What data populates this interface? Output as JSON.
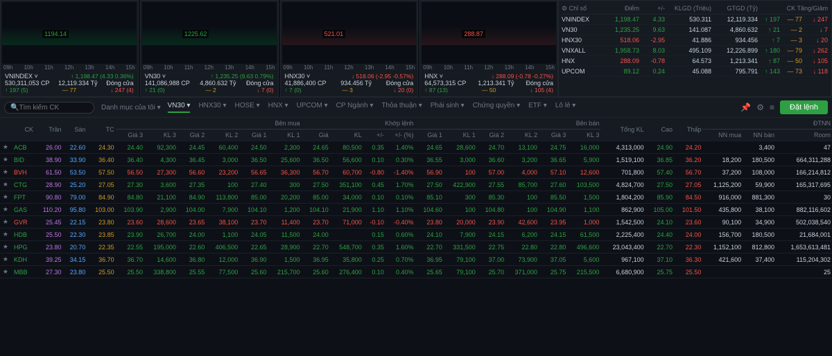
{
  "colors": {
    "up": "#2ea043",
    "down": "#f85149",
    "ref": "#d29922",
    "ceil": "#c074e8",
    "floor": "#58a6ff",
    "neutral": "#c9d1d9",
    "bg": "#0d1117",
    "panel": "#161b22",
    "border": "#21262d"
  },
  "charts": [
    {
      "symbol": "VNINDEX",
      "value": "1194.14",
      "price": "1,198.47",
      "chg": "(4.33 0.36%)",
      "vol": "530,311,053 CP",
      "val": "12,119.334 Tỷ",
      "status": "Đóng cửa",
      "up": "197 (5)",
      "flat": "77",
      "down": "247 (4)",
      "dir": "up",
      "style": "green"
    },
    {
      "symbol": "VN30",
      "value": "1225.62",
      "price": "1,235.25",
      "chg": "(9.63 0.79%)",
      "vol": "141,086,988 CP",
      "val": "4,860.632 Tỷ",
      "status": "Đóng cửa",
      "up": "21 (0)",
      "flat": "2",
      "down": "7 (0)",
      "dir": "up",
      "style": "green"
    },
    {
      "symbol": "HNX30",
      "value": "521.01",
      "price": "518.06",
      "chg": "(-2.95 -0.57%)",
      "vol": "41,886,400 CP",
      "val": "934.456 Tỷ",
      "status": "Đóng cửa",
      "up": "7 (0)",
      "flat": "3",
      "down": "20 (0)",
      "dir": "down",
      "style": "red"
    },
    {
      "symbol": "HNX",
      "value": "288.87",
      "price": "288.09",
      "chg": "(-0.78 -0.27%)",
      "vol": "64,573,315 CP",
      "val": "1,213.341 Tỷ",
      "status": "Đóng cửa",
      "up": "87 (13)",
      "flat": "50",
      "down": "105 (4)",
      "dir": "down",
      "style": "red"
    }
  ],
  "chart_times": [
    "09h",
    "10h",
    "11h",
    "12h",
    "13h",
    "14h",
    "15h"
  ],
  "indices_header": {
    "c0": "Chỉ số",
    "c1": "Điểm",
    "c2": "+/-",
    "c3": "KLGD (Triệu)",
    "c4": "GTGD (Tỷ)",
    "c5": "CK Tăng/Giảm"
  },
  "indices": [
    {
      "name": "VNINDEX",
      "point": "1,198.47",
      "chg": "4.33",
      "vol": "530.311",
      "val": "12,119.334",
      "up": "197",
      "flat": "77",
      "down": "247",
      "dir": "up"
    },
    {
      "name": "VN30",
      "point": "1,235.25",
      "chg": "9.63",
      "vol": "141.087",
      "val": "4,860.632",
      "up": "21",
      "flat": "2",
      "down": "7",
      "dir": "up"
    },
    {
      "name": "HNX30",
      "point": "518.06",
      "chg": "-2.95",
      "vol": "41.886",
      "val": "934.456",
      "up": "7",
      "flat": "3",
      "down": "20",
      "dir": "down"
    },
    {
      "name": "VNXALL",
      "point": "1,958.73",
      "chg": "8.03",
      "vol": "495.109",
      "val": "12,226.899",
      "up": "180",
      "flat": "79",
      "down": "262",
      "dir": "up"
    },
    {
      "name": "HNX",
      "point": "288.09",
      "chg": "-0.78",
      "vol": "64.573",
      "val": "1,213.341",
      "up": "87",
      "flat": "50",
      "down": "105",
      "dir": "down"
    },
    {
      "name": "UPCOM",
      "point": "89.12",
      "chg": "0.24",
      "vol": "45.088",
      "val": "795.791",
      "up": "143",
      "flat": "73",
      "down": "118",
      "dir": "up"
    }
  ],
  "search_placeholder": "Tìm kiếm CK",
  "nav": {
    "watchlist": "Danh mục của tôi",
    "items": [
      "VN30",
      "HNX30",
      "HOSE",
      "HNX",
      "UPCOM",
      "CP Ngành",
      "Thỏa thuận",
      "Phái sinh",
      "Chứng quyền",
      "ETF",
      "Lô lẻ"
    ],
    "active": "VN30",
    "order_btn": "Đặt lệnh"
  },
  "table_headers": {
    "ck": "CK",
    "tran": "Trần",
    "san": "Sàn",
    "tc": "TC",
    "benmua": "Bên mua",
    "khoplenh": "Khớp lệnh",
    "benban": "Bên bán",
    "tongkl": "Tổng KL",
    "cao": "Cao",
    "thap": "Thấp",
    "dtnn": "ĐTNN",
    "gia3": "Giá 3",
    "kl3": "KL 3",
    "gia2": "Giá 2",
    "kl2": "KL 2",
    "gia1": "Giá 1",
    "kl1": "KL 1",
    "gia": "Giá",
    "kl": "KL",
    "pm": "+/-",
    "pct": "+/- (%)",
    "nnmua": "NN mua",
    "nnban": "NN bán",
    "room": "Room"
  },
  "rows": [
    {
      "ck": "ACB",
      "tran": "26.00",
      "san": "22.60",
      "tc": "24.30",
      "bg3": "24.40",
      "bk3": "92,300",
      "bg2": "24.45",
      "bk2": "60,400",
      "bg1": "24.50",
      "bk1": "2,300",
      "g": "24.65",
      "kl": "80,500",
      "pm": "0.35",
      "pct": "1.40%",
      "sg1": "24.65",
      "sk1": "28,600",
      "sg2": "24.70",
      "sk2": "13,100",
      "sg3": "24.75",
      "sk3": "16,000",
      "tkl": "4,313,000",
      "cao": "24.90",
      "thap": "24.20",
      "nnm": "",
      "nnb": "3,400",
      "room": "47",
      "c": "up"
    },
    {
      "ck": "BID",
      "tran": "38.90",
      "san": "33.90",
      "tc": "36.40",
      "bg3": "36.40",
      "bk3": "4,300",
      "bg2": "36.45",
      "bk2": "3,000",
      "bg1": "36.50",
      "bk1": "25,600",
      "g": "36.50",
      "kl": "56,600",
      "pm": "0.10",
      "pct": "0.30%",
      "sg1": "36.55",
      "sk1": "3,000",
      "sg2": "36.60",
      "sk2": "3,200",
      "sg3": "36.65",
      "sk3": "5,900",
      "tkl": "1,519,100",
      "cao": "36.85",
      "thap": "36.20",
      "nnm": "18,200",
      "nnb": "180,500",
      "room": "664,311,288",
      "c": "up"
    },
    {
      "ck": "BVH",
      "tran": "61.50",
      "san": "53.50",
      "tc": "57.50",
      "bg3": "56.50",
      "bk3": "27,300",
      "bg2": "56.60",
      "bk2": "23,200",
      "bg1": "56.65",
      "bk1": "36,300",
      "g": "56.70",
      "kl": "60,700",
      "pm": "-0.80",
      "pct": "-1.40%",
      "sg1": "56.90",
      "sk1": "100",
      "sg2": "57.00",
      "sk2": "4,000",
      "sg3": "57.10",
      "sk3": "12,600",
      "tkl": "701,800",
      "cao": "57.40",
      "thap": "56.70",
      "nnm": "37,200",
      "nnb": "108,000",
      "room": "166,214,812",
      "c": "down"
    },
    {
      "ck": "CTG",
      "tran": "28.90",
      "san": "25.20",
      "tc": "27.05",
      "bg3": "27.30",
      "bk3": "3,600",
      "bg2": "27.35",
      "bk2": "100",
      "bg1": "27.40",
      "bk1": "300",
      "g": "27.50",
      "kl": "351,100",
      "pm": "0.45",
      "pct": "1.70%",
      "sg1": "27.50",
      "sk1": "422,900",
      "sg2": "27.55",
      "sk2": "85,700",
      "sg3": "27.60",
      "sk3": "103,500",
      "tkl": "4,824,700",
      "cao": "27.50",
      "thap": "27.05",
      "nnm": "1,125,200",
      "nnb": "59,900",
      "room": "165,317,695",
      "c": "up"
    },
    {
      "ck": "FPT",
      "tran": "90.80",
      "san": "79.00",
      "tc": "84.90",
      "bg3": "84.80",
      "bk3": "21,100",
      "bg2": "84.90",
      "bk2": "113,800",
      "bg1": "85.00",
      "bk1": "20,200",
      "g": "85.00",
      "kl": "34,000",
      "pm": "0.10",
      "pct": "0.10%",
      "sg1": "85.10",
      "sk1": "300",
      "sg2": "85.30",
      "sk2": "100",
      "sg3": "85.50",
      "sk3": "1,500",
      "tkl": "1,804,200",
      "cao": "85.90",
      "thap": "84.50",
      "nnm": "916,000",
      "nnb": "881,300",
      "room": "30",
      "c": "up"
    },
    {
      "ck": "GAS",
      "tran": "110.20",
      "san": "95.80",
      "tc": "103.00",
      "bg3": "103.90",
      "bk3": "2,900",
      "bg2": "104.00",
      "bk2": "7,900",
      "bg1": "104.10",
      "bk1": "1,200",
      "g": "104.10",
      "kl": "21,900",
      "pm": "1.10",
      "pct": "1.10%",
      "sg1": "104.60",
      "sk1": "100",
      "sg2": "104.80",
      "sk2": "100",
      "sg3": "104.90",
      "sk3": "1,100",
      "tkl": "862,900",
      "cao": "105.00",
      "thap": "101.50",
      "nnm": "435,800",
      "nnb": "38,100",
      "room": "882,116,602",
      "c": "up"
    },
    {
      "ck": "GVR",
      "tran": "25.45",
      "san": "22.15",
      "tc": "23.80",
      "bg3": "23.60",
      "bk3": "28,600",
      "bg2": "23.65",
      "bk2": "38,100",
      "bg1": "23.70",
      "bk1": "11,400",
      "g": "23.70",
      "kl": "71,000",
      "pm": "-0.10",
      "pct": "-0.40%",
      "sg1": "23.80",
      "sk1": "20,000",
      "sg2": "23.90",
      "sk2": "42,600",
      "sg3": "23.95",
      "sk3": "1,000",
      "tkl": "1,542,500",
      "cao": "24.10",
      "thap": "23.60",
      "nnm": "90,100",
      "nnb": "34,900",
      "room": "502,038,540",
      "c": "down"
    },
    {
      "ck": "HDB",
      "tran": "25.50",
      "san": "22.30",
      "tc": "23.85",
      "bg3": "23.90",
      "bk3": "26,700",
      "bg2": "24.00",
      "bk2": "1,100",
      "bg1": "24.05",
      "bk1": "11,500",
      "g": "24.00",
      "kl": "",
      "pm": "0.15",
      "pct": "0.60%",
      "sg1": "24.10",
      "sk1": "7,900",
      "sg2": "24.15",
      "sk2": "6,200",
      "sg3": "24.15",
      "sk3": "61,500",
      "tkl": "2,225,400",
      "cao": "24.40",
      "thap": "24.00",
      "nnm": "156,700",
      "nnb": "180,500",
      "room": "21,684,001",
      "c": "up"
    },
    {
      "ck": "HPG",
      "tran": "23.80",
      "san": "20.70",
      "tc": "22.35",
      "bg3": "22.55",
      "bk3": "195,000",
      "bg2": "22.60",
      "bk2": "406,500",
      "bg1": "22.65",
      "bk1": "28,900",
      "g": "22.70",
      "kl": "548,700",
      "pm": "0.35",
      "pct": "1.60%",
      "sg1": "22.70",
      "sk1": "331,500",
      "sg2": "22.75",
      "sk2": "22.80",
      "sg3": "22.80",
      "sk3": "496,600",
      "tkl": "23,043,400",
      "cao": "22.70",
      "thap": "22.30",
      "nnm": "1,152,100",
      "nnb": "812,800",
      "room": "1,653,613,481",
      "c": "up"
    },
    {
      "ck": "KDH",
      "tran": "39.25",
      "san": "34.15",
      "tc": "36.70",
      "bg3": "36.70",
      "bk3": "14,600",
      "bg2": "36.80",
      "bk2": "12,000",
      "bg1": "36.90",
      "bk1": "1,500",
      "g": "36.95",
      "kl": "35,800",
      "pm": "0.25",
      "pct": "0.70%",
      "sg1": "36.95",
      "sk1": "79,100",
      "sg2": "37.00",
      "sk2": "73,900",
      "sg3": "37.05",
      "sk3": "5,600",
      "tkl": "967,100",
      "cao": "37.10",
      "thap": "36.30",
      "nnm": "421,600",
      "nnb": "37,400",
      "room": "115,204,302",
      "c": "up"
    },
    {
      "ck": "MBB",
      "tran": "27.30",
      "san": "23.80",
      "tc": "25.50",
      "bg3": "25.50",
      "bk3": "338,800",
      "bg2": "25.55",
      "bk2": "77,500",
      "bg1": "25.60",
      "bk1": "215,700",
      "g": "25.60",
      "kl": "276,400",
      "pm": "0.10",
      "pct": "0.40%",
      "sg1": "25.65",
      "sk1": "79,100",
      "sg2": "25.70",
      "sk2": "371,000",
      "sg3": "25.75",
      "sk3": "215,500",
      "tkl": "6,680,900",
      "cao": "25.75",
      "thap": "25.50",
      "nnm": "",
      "nnb": "",
      "room": "25",
      "c": "up"
    }
  ]
}
